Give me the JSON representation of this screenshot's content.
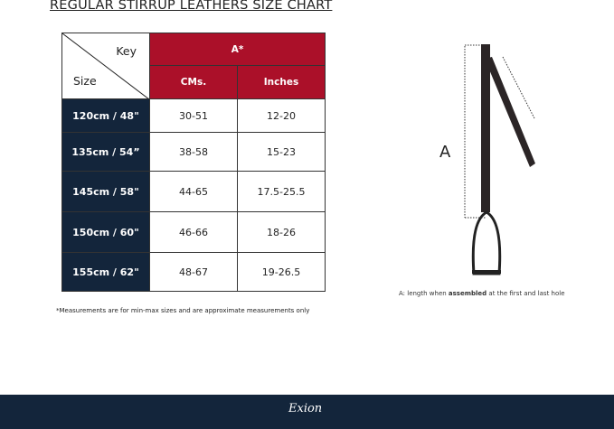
{
  "title": "REGULAR STIRRUP LEATHERS  SIZE CHART",
  "table": {
    "corner_key": "Key",
    "corner_size": "Size",
    "group_header": "A*",
    "columns": [
      "CMs.",
      "Inches"
    ],
    "rows": [
      {
        "size": "120cm / 48\"",
        "cms": "30-51",
        "inches": "12-20"
      },
      {
        "size": "135cm / 54”",
        "cms": "38-58",
        "inches": "15-23"
      },
      {
        "size": "145cm / 58\"",
        "cms": "44-65",
        "inches": "17.5-25.5"
      },
      {
        "size": "150cm / 60\"",
        "cms": "46-66",
        "inches": "18-26"
      },
      {
        "size": "155cm / 62\"",
        "cms": "48-67",
        "inches": "19-26.5"
      }
    ]
  },
  "note": "*Measurements are for min-max sizes and are approximate measurements only",
  "diagram": {
    "label": "A",
    "caption_pre": "A: length when ",
    "caption_bold": "assembled",
    "caption_post": " at the first and last hole"
  },
  "footer": {
    "logo": "Exion"
  },
  "colors": {
    "red": "#ab1029",
    "navy": "#13253b"
  }
}
